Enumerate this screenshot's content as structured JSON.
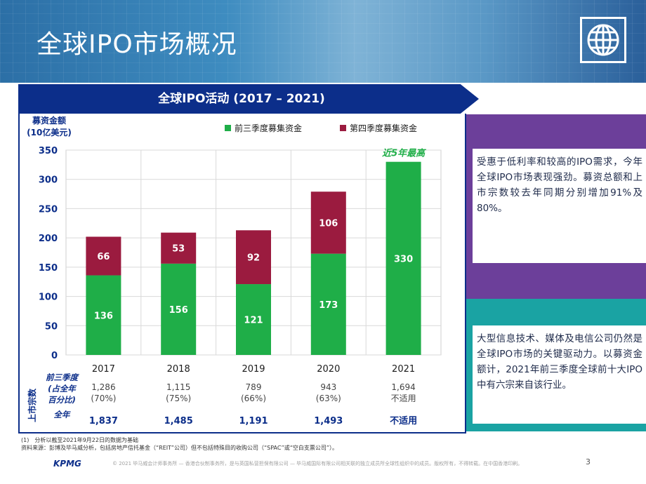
{
  "page": {
    "title": "全球IPO市场概况",
    "page_number": "3"
  },
  "banner": {
    "title": "全球IPO活动 (2017 – 2021)"
  },
  "panels": {
    "purple_text": "受惠于低利率和较高的IPO需求，今年全球IPO市场表现强劲。募资总额和上市宗数较去年同期分别增加91%及80%。",
    "teal_text": "大型信息技术、媒体及电信公司仍然是全球IPO市场的关键驱动力。以募资金额计，2021年前三季度全球前十大IPO中有六宗来自该行业。"
  },
  "footnotes": {
    "note1": "(1)　分析以截至2021年9月22日的数据为基础",
    "source": "资料来源：彭博及毕马威分析，包括房地产信托基金（“REIT”公司）但不包括特殊目的收购公司（“SPAC”或“空白支票公司”）。"
  },
  "footer": {
    "logo": "KPMG",
    "legal": "© 2021 毕马威会计师事务所 — 香港合伙制事务所，是与英国私营担保有限公司 — 毕马威国际有限公司相关联的独立成员所全球性组织中的成员。版权所有，不得转载。在中国香港印刷。"
  },
  "colors": {
    "green": "#1fae48",
    "maroon": "#9b1b3f",
    "navy": "#0c2e8a",
    "purple": "#6c3f9a",
    "teal": "#1aa3a3"
  },
  "chart_data": {
    "type": "bar",
    "stacked": true,
    "title": "全球IPO活动 (2017 – 2021)",
    "ylabel": "募资金额",
    "ylabel_unit": "(10亿美元)",
    "ylim": [
      0,
      350
    ],
    "yticks": [
      0,
      50,
      100,
      150,
      200,
      250,
      300,
      350
    ],
    "categories": [
      "2017",
      "2018",
      "2019",
      "2020",
      "2021"
    ],
    "series": [
      {
        "name": "前三季度募集资金",
        "color": "#1fae48",
        "values": [
          136,
          156,
          121,
          173,
          330
        ]
      },
      {
        "name": "第四季度募集资金",
        "color": "#9b1b3f",
        "values": [
          66,
          53,
          92,
          106,
          null
        ]
      }
    ],
    "annotation": "近5年最高",
    "table": {
      "side_label": "上市宗数",
      "row1_label": "前三季度\n(占全年\n百分比)",
      "row1_values": [
        "1,286\n(70%)",
        "1,115\n(75%)",
        "789\n(66%)",
        "943\n(63%)",
        "1,694\n不适用"
      ],
      "row2_label": "全年",
      "row2_values": [
        "1,837",
        "1,485",
        "1,191",
        "1,493",
        "不适用"
      ]
    }
  }
}
